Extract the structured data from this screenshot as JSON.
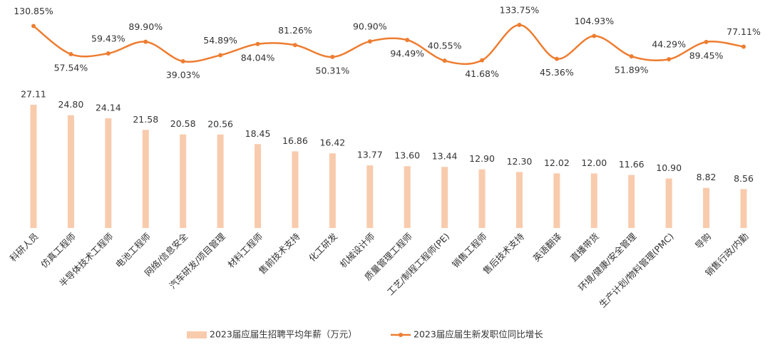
{
  "chart_data": {
    "type": "bar",
    "categories": [
      "科研人员",
      "仿真工程师",
      "半导体技术工程师",
      "电池工程师",
      "网络/信息安全",
      "汽车研发/项目管理",
      "材料工程师",
      "售前技术支持",
      "化工研发",
      "机械设计师",
      "质量管理工程师",
      "工艺/制程工程师(PE)",
      "销售工程师",
      "售后技术支持",
      "英语翻译",
      "直播带货",
      "环境/健康/安全管理",
      "生产计划/物料管理(PMC)",
      "导购",
      "销售行政/内勤"
    ],
    "series": [
      {
        "name": "2023届应届生招聘平均年薪（万元）",
        "type": "bar",
        "color": "#f8cbad",
        "values": [
          27.11,
          24.8,
          24.14,
          21.58,
          20.58,
          20.56,
          18.45,
          16.86,
          16.42,
          13.77,
          13.6,
          13.44,
          12.9,
          12.3,
          12.02,
          12.0,
          11.66,
          10.9,
          8.82,
          8.56
        ],
        "value_labels": [
          "27.11",
          "24.80",
          "24.14",
          "21.58",
          "20.58",
          "20.56",
          "18.45",
          "16.86",
          "16.42",
          "13.77",
          "13.60",
          "13.44",
          "12.90",
          "12.30",
          "12.02",
          "12.00",
          "11.66",
          "10.90",
          "8.82",
          "8.56"
        ]
      },
      {
        "name": "2023届应届生新发职位同比增长",
        "type": "line",
        "axis": "y2",
        "color": "#ed7d31",
        "values": [
          130.85,
          57.54,
          59.43,
          89.9,
          39.03,
          54.89,
          84.04,
          81.26,
          50.31,
          90.9,
          94.49,
          40.55,
          41.68,
          133.75,
          45.36,
          104.93,
          51.89,
          44.29,
          89.45,
          77.11
        ],
        "value_labels": [
          "130.85%",
          "57.54%",
          "59.43%",
          "89.90%",
          "39.03%",
          "54.89%",
          "84.04%",
          "81.26%",
          "50.31%",
          "90.90%",
          "94.49%",
          "40.55%",
          "41.68%",
          "133.75%",
          "45.36%",
          "104.93%",
          "51.89%",
          "44.29%",
          "89.45%",
          "77.11%"
        ]
      }
    ]
  }
}
